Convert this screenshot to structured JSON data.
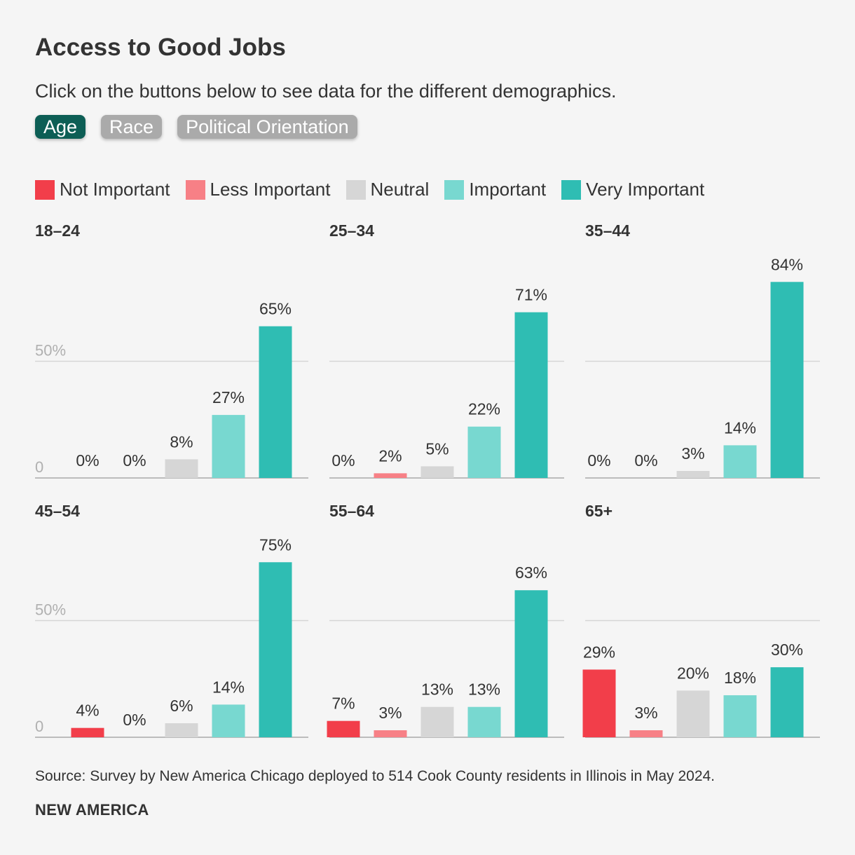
{
  "title": "Access to Good Jobs",
  "subtitle": "Click on the buttons below to see data for the different demographics.",
  "buttons": [
    {
      "label": "Age",
      "active": true
    },
    {
      "label": "Race",
      "active": false
    },
    {
      "label": "Political Orientation",
      "active": false
    }
  ],
  "colors": {
    "active_button": "#0d5e55",
    "inactive_button": "#aaaaaa",
    "gridline": "#d6d6d6",
    "axis": "#aaaaaa",
    "tick_label": "#b0b0b0",
    "value_label": "#333333"
  },
  "legend": [
    {
      "label": "Not Important",
      "color": "#f23e4a"
    },
    {
      "label": "Less Important",
      "color": "#f78086"
    },
    {
      "label": "Neutral",
      "color": "#d6d6d6"
    },
    {
      "label": "Important",
      "color": "#78d8d0"
    },
    {
      "label": "Very Important",
      "color": "#2fbdb3"
    }
  ],
  "chart_data": [
    {
      "type": "bar",
      "title": "18–24",
      "categories": [
        "Not Important",
        "Less Important",
        "Neutral",
        "Important",
        "Very Important"
      ],
      "values": [
        0,
        0,
        8,
        27,
        65
      ],
      "labels": [
        "0%",
        "0%",
        "8%",
        "27%",
        "65%"
      ],
      "ylim": [
        0,
        90
      ],
      "ticks": [
        {
          "value": 0,
          "label": "0"
        },
        {
          "value": 50,
          "label": "50%"
        }
      ]
    },
    {
      "type": "bar",
      "title": "25–34",
      "categories": [
        "Not Important",
        "Less Important",
        "Neutral",
        "Important",
        "Very Important"
      ],
      "values": [
        0,
        2,
        5,
        22,
        71
      ],
      "labels": [
        "0%",
        "2%",
        "5%",
        "22%",
        "71%"
      ],
      "ylim": [
        0,
        90
      ],
      "ticks": [
        {
          "value": 0,
          "label": ""
        },
        {
          "value": 50,
          "label": ""
        }
      ]
    },
    {
      "type": "bar",
      "title": "35–44",
      "categories": [
        "Not Important",
        "Less Important",
        "Neutral",
        "Important",
        "Very Important"
      ],
      "values": [
        0,
        0,
        3,
        14,
        84
      ],
      "labels": [
        "0%",
        "0%",
        "3%",
        "14%",
        "84%"
      ],
      "ylim": [
        0,
        90
      ],
      "ticks": [
        {
          "value": 0,
          "label": ""
        },
        {
          "value": 50,
          "label": ""
        }
      ]
    },
    {
      "type": "bar",
      "title": "45–54",
      "categories": [
        "Not Important",
        "Less Important",
        "Neutral",
        "Important",
        "Very Important"
      ],
      "values": [
        4,
        0,
        6,
        14,
        75
      ],
      "labels": [
        "4%",
        "0%",
        "6%",
        "14%",
        "75%"
      ],
      "ylim": [
        0,
        90
      ],
      "ticks": [
        {
          "value": 0,
          "label": "0"
        },
        {
          "value": 50,
          "label": "50%"
        }
      ]
    },
    {
      "type": "bar",
      "title": "55–64",
      "categories": [
        "Not Important",
        "Less Important",
        "Neutral",
        "Important",
        "Very Important"
      ],
      "values": [
        7,
        3,
        13,
        13,
        63
      ],
      "labels": [
        "7%",
        "3%",
        "13%",
        "13%",
        "63%"
      ],
      "ylim": [
        0,
        90
      ],
      "ticks": [
        {
          "value": 0,
          "label": ""
        },
        {
          "value": 50,
          "label": ""
        }
      ]
    },
    {
      "type": "bar",
      "title": "65+",
      "categories": [
        "Not Important",
        "Less Important",
        "Neutral",
        "Important",
        "Very Important"
      ],
      "values": [
        29,
        3,
        20,
        18,
        30
      ],
      "labels": [
        "29%",
        "3%",
        "20%",
        "18%",
        "30%"
      ],
      "ylim": [
        0,
        90
      ],
      "ticks": [
        {
          "value": 0,
          "label": ""
        },
        {
          "value": 50,
          "label": ""
        }
      ]
    }
  ],
  "source": "Source: Survey by New America Chicago deployed to 514 Cook County residents in Illinois in May 2024.",
  "brand": "NEW AMERICA"
}
